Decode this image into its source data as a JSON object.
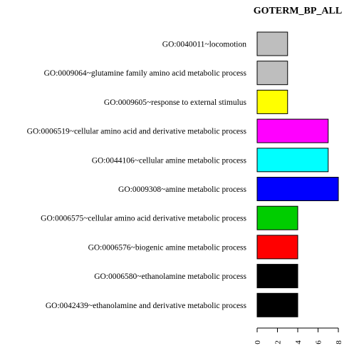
{
  "chart_data": {
    "type": "bar",
    "orientation": "horizontal",
    "title": "GOTERM_BP_ALL",
    "xlabel": "",
    "ylabel": "",
    "xlim": [
      0,
      8
    ],
    "x_ticks": [
      "0",
      "2",
      "4",
      "6",
      "8"
    ],
    "grid": false,
    "categories": [
      "GO:0040011~locomotion",
      "GO:0009064~glutamine family amino acid metabolic process",
      "GO:0009605~response to external stimulus",
      "GO:0006519~cellular amino acid and derivative metabolic process",
      "GO:0044106~cellular amine metabolic process",
      "GO:0009308~amine metabolic process",
      "GO:0006575~cellular amino acid derivative metabolic process",
      "GO:0006576~biogenic amine metabolic process",
      "GO:0006580~ethanolamine metabolic process",
      "GO:0042439~ethanolamine and derivative metabolic process"
    ],
    "values": [
      3,
      3,
      3,
      7,
      7,
      8,
      4,
      4,
      4,
      4
    ],
    "colors": [
      "#bebebe",
      "#bebebe",
      "#ffff00",
      "#ff00ff",
      "#00ffff",
      "#0000ff",
      "#00cd00",
      "#ff0000",
      "#000000",
      "#000000"
    ]
  }
}
